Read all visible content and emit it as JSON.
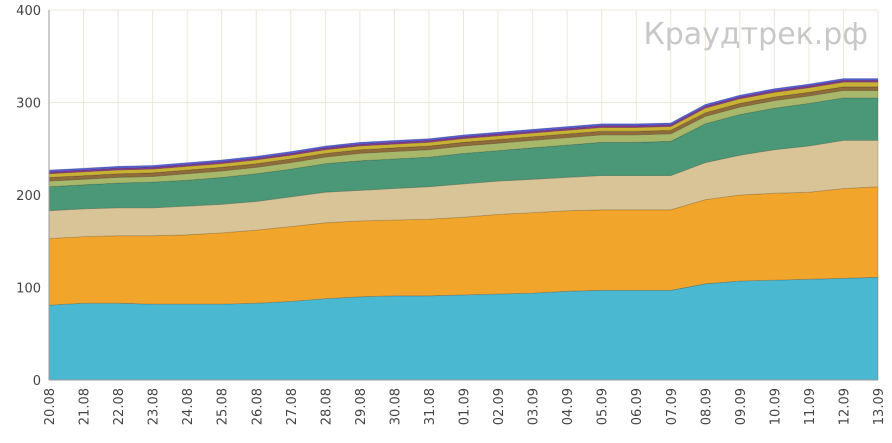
{
  "watermark": "Краудтрек.рф",
  "chart_data": {
    "type": "area",
    "stacked": true,
    "title": "",
    "xlabel": "",
    "ylabel": "",
    "ylim": [
      0,
      400
    ],
    "yticks": [
      0,
      100,
      200,
      300,
      400
    ],
    "grid": true,
    "legend": "none",
    "categories": [
      "20.08",
      "21.08",
      "22.08",
      "23.08",
      "24.08",
      "25.08",
      "26.08",
      "27.08",
      "28.08",
      "29.08",
      "30.08",
      "31.08",
      "01.09",
      "02.09",
      "03.09",
      "04.09",
      "05.09",
      "06.09",
      "07.09",
      "08.09",
      "09.09",
      "10.09",
      "11.09",
      "12.09",
      "13.09"
    ],
    "series": [
      {
        "color": "#4bb8d2",
        "values": [
          81,
          83,
          83,
          82,
          82,
          82,
          83,
          85,
          88,
          90,
          91,
          91,
          92,
          93,
          94,
          96,
          97,
          97,
          97,
          104,
          107,
          108,
          109,
          110,
          111
        ]
      },
      {
        "color": "#f2a52b",
        "values": [
          72,
          72,
          73,
          74,
          75,
          77,
          79,
          81,
          82,
          82,
          82,
          83,
          84,
          86,
          87,
          87,
          87,
          87,
          87,
          91,
          93,
          94,
          94,
          97,
          98
        ]
      },
      {
        "color": "#d8c496",
        "values": [
          30,
          30,
          30,
          30,
          31,
          31,
          31,
          32,
          33,
          33,
          34,
          35,
          36,
          36,
          36,
          36,
          37,
          37,
          37,
          40,
          43,
          47,
          50,
          52,
          50
        ]
      },
      {
        "color": "#4a9878",
        "values": [
          26,
          26,
          27,
          28,
          28,
          29,
          30,
          30,
          31,
          32,
          32,
          32,
          33,
          33,
          34,
          35,
          36,
          36,
          37,
          42,
          44,
          45,
          46,
          46,
          46
        ]
      },
      {
        "color": "#a8b86a",
        "values": [
          6,
          6,
          6,
          6,
          7,
          7,
          7,
          7,
          7,
          8,
          8,
          8,
          8,
          8,
          8,
          8,
          8,
          8,
          8,
          8,
          8,
          8,
          8,
          8,
          8
        ]
      },
      {
        "color": "#8f6a3a",
        "values": [
          4,
          4,
          4,
          4,
          4,
          4,
          4,
          4,
          4,
          4,
          4,
          4,
          4,
          4,
          4,
          4,
          4,
          4,
          4,
          4,
          4,
          4,
          4,
          4,
          4
        ]
      },
      {
        "color": "#c9b233",
        "values": [
          4,
          4,
          4,
          4,
          4,
          4,
          4,
          4,
          4,
          4,
          4,
          4,
          4,
          4,
          4,
          4,
          4,
          4,
          4,
          5,
          5,
          5,
          5,
          5,
          5
        ]
      },
      {
        "color": "#8a3a8e",
        "values": [
          2,
          2,
          2,
          2,
          2,
          2,
          2,
          2,
          2,
          2,
          2,
          2,
          2,
          2,
          2,
          2,
          2,
          2,
          2,
          2,
          2,
          2,
          2,
          2,
          2
        ]
      },
      {
        "color": "#5560d8",
        "values": [
          2,
          2,
          2,
          2,
          2,
          2,
          2,
          2,
          2,
          2,
          2,
          2,
          2,
          2,
          2,
          2,
          2,
          2,
          2,
          2,
          2,
          2,
          2,
          2,
          2
        ]
      }
    ]
  }
}
